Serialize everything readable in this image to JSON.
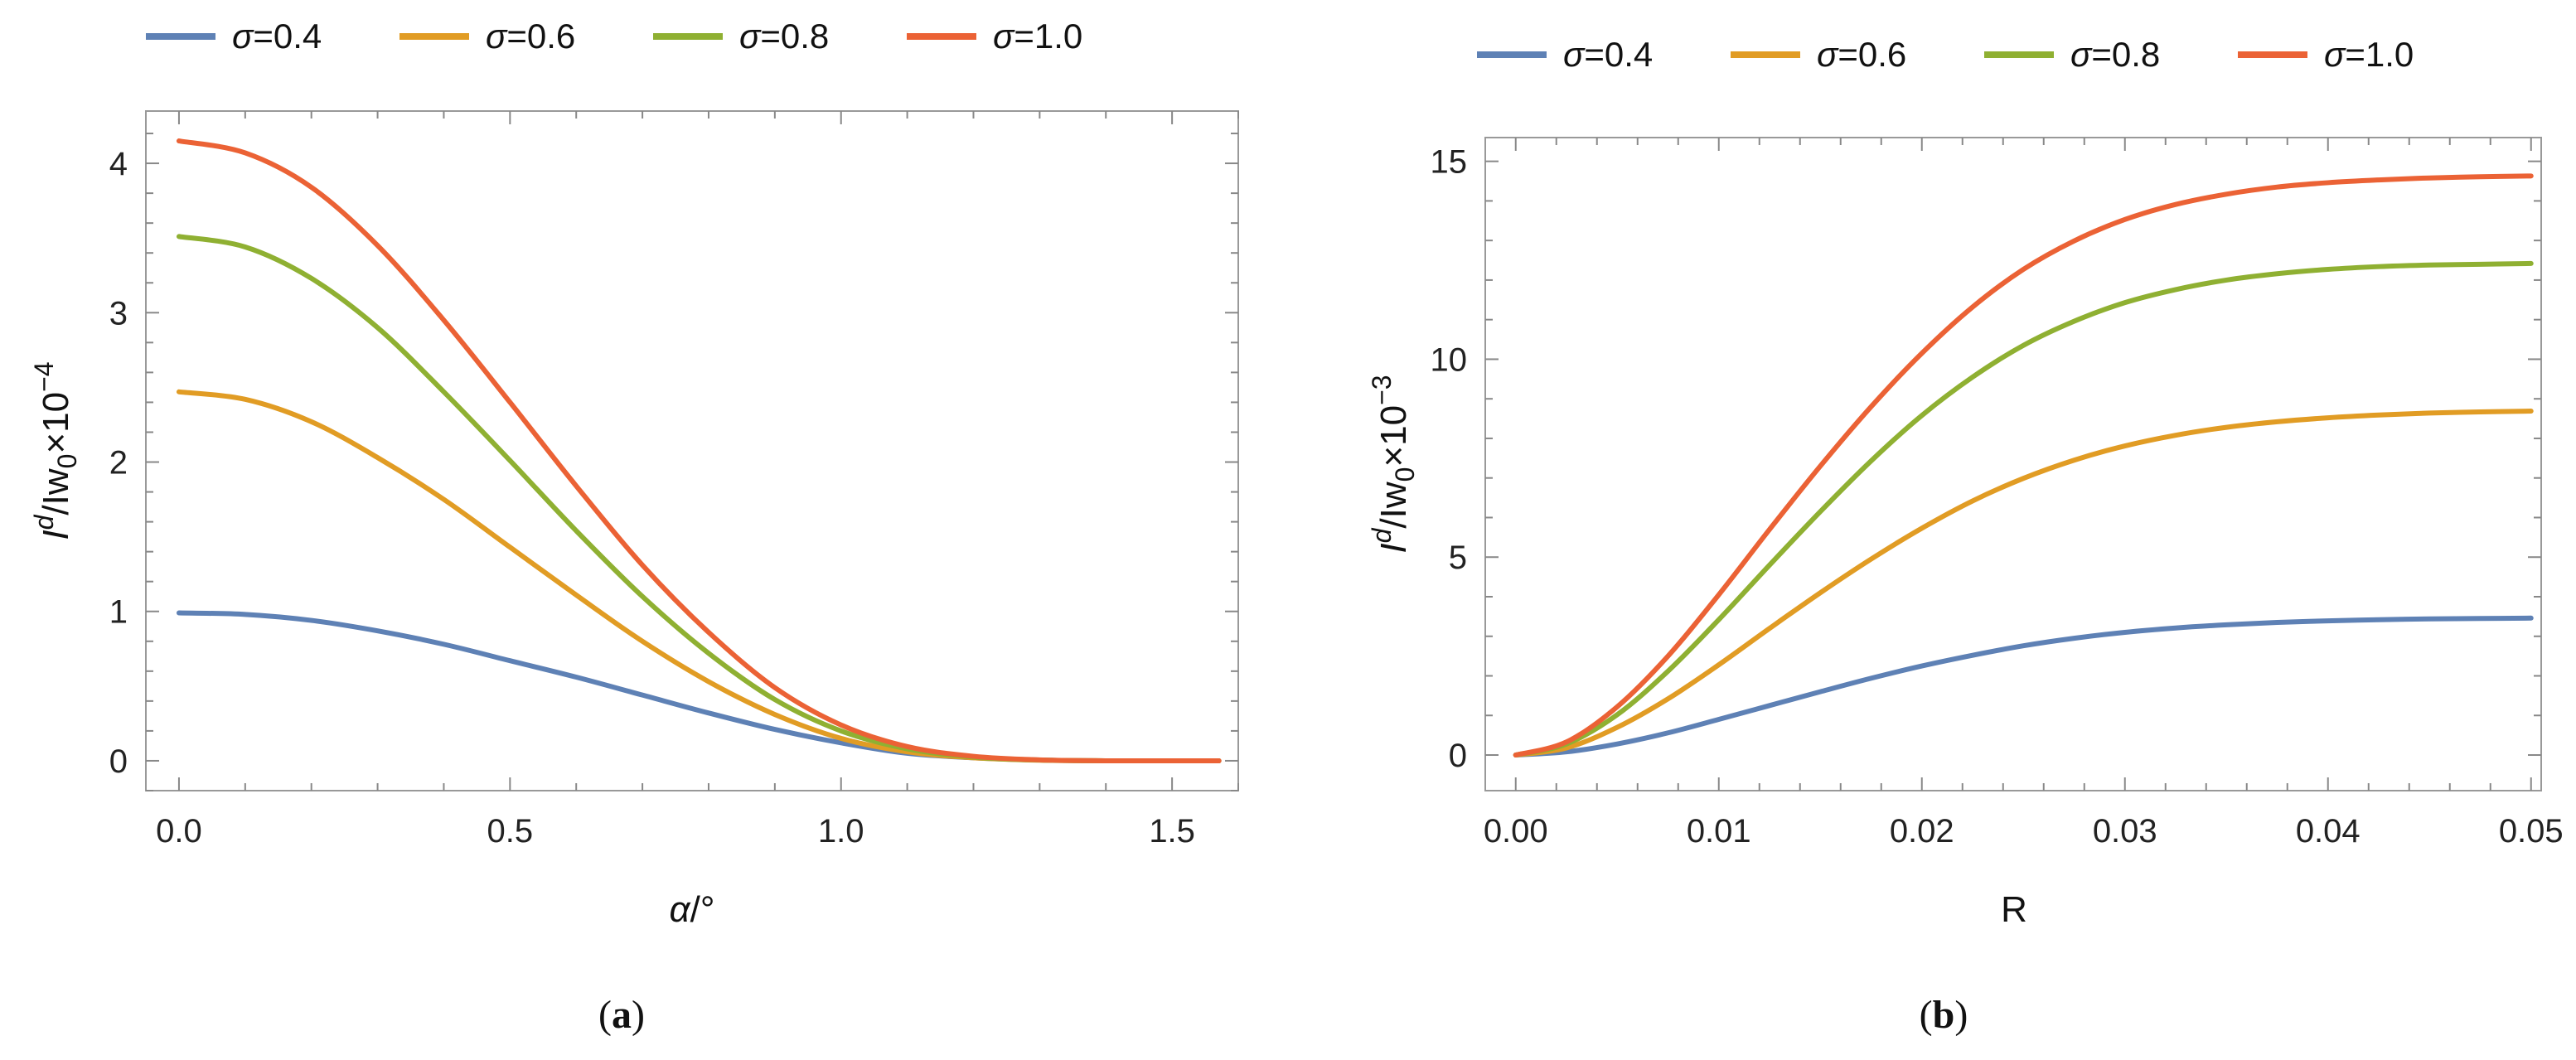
{
  "chart_data": [
    {
      "type": "line",
      "caption_letter": "a",
      "xlabel_symbol": "α",
      "xlabel_unit": "/°",
      "ylabel": {
        "base": "I",
        "sup": "d",
        "mid": "/Iw",
        "sub": "0",
        "mult": "×10",
        "exp": "−4"
      },
      "xlim": [
        -0.05,
        1.6
      ],
      "ylim": [
        -0.2,
        4.35
      ],
      "x_ticks": [
        0.0,
        0.5,
        1.0,
        1.5
      ],
      "x_tick_labels": [
        "0.0",
        "0.5",
        "1.0",
        "1.5"
      ],
      "y_ticks": [
        0,
        1,
        2,
        3,
        4
      ],
      "y_tick_labels": [
        "0",
        "1",
        "2",
        "3",
        "4"
      ],
      "x": [
        0.0,
        0.1,
        0.2,
        0.3,
        0.4,
        0.5,
        0.6,
        0.7,
        0.8,
        0.9,
        1.0,
        1.1,
        1.2,
        1.3,
        1.4,
        1.5,
        1.5708
      ],
      "series": [
        {
          "name": "σ=0.4",
          "legend_sym": "σ",
          "legend_val": "=0.4",
          "color": "#5E81B5",
          "values": [
            0.99,
            0.98,
            0.94,
            0.87,
            0.78,
            0.67,
            0.56,
            0.44,
            0.32,
            0.21,
            0.12,
            0.05,
            0.02,
            0.005,
            0.0,
            0.0,
            0.0
          ]
        },
        {
          "name": "σ=0.6",
          "legend_sym": "σ",
          "legend_val": "=0.6",
          "color": "#E19C24",
          "values": [
            2.47,
            2.42,
            2.27,
            2.03,
            1.75,
            1.43,
            1.11,
            0.8,
            0.53,
            0.31,
            0.15,
            0.06,
            0.02,
            0.004,
            0.0,
            0.0,
            0.0
          ]
        },
        {
          "name": "σ=0.8",
          "legend_sym": "σ",
          "legend_val": "=0.8",
          "color": "#8FB032",
          "values": [
            3.51,
            3.44,
            3.23,
            2.9,
            2.47,
            2.01,
            1.54,
            1.1,
            0.72,
            0.41,
            0.2,
            0.08,
            0.025,
            0.005,
            0.0,
            0.0,
            0.0
          ]
        },
        {
          "name": "σ=1.0",
          "legend_sym": "σ",
          "legend_val": "=1.0",
          "color": "#EB6235",
          "values": [
            4.15,
            4.07,
            3.84,
            3.45,
            2.95,
            2.4,
            1.84,
            1.31,
            0.86,
            0.49,
            0.24,
            0.095,
            0.03,
            0.006,
            0.0,
            0.0,
            0.0
          ]
        }
      ]
    },
    {
      "type": "line",
      "caption_letter": "b",
      "xlabel": "R",
      "ylabel": {
        "base": "I",
        "sup": "d",
        "mid": "/Iw",
        "sub": "0",
        "mult": "×10",
        "exp": "−3"
      },
      "xlim": [
        -0.0015,
        0.0505
      ],
      "ylim": [
        -0.9,
        15.6
      ],
      "x_ticks": [
        0.0,
        0.01,
        0.02,
        0.03,
        0.04,
        0.05
      ],
      "x_tick_labels": [
        "0.00",
        "0.01",
        "0.02",
        "0.03",
        "0.04",
        "0.05"
      ],
      "y_ticks": [
        0,
        5,
        10,
        15
      ],
      "y_tick_labels": [
        "0",
        "5",
        "10",
        "15"
      ],
      "x": [
        0.0,
        0.0025,
        0.005,
        0.0075,
        0.01,
        0.0125,
        0.015,
        0.0175,
        0.02,
        0.0225,
        0.025,
        0.0275,
        0.03,
        0.0325,
        0.035,
        0.0375,
        0.04,
        0.0425,
        0.045,
        0.0475,
        0.05
      ],
      "series": [
        {
          "name": "σ=0.4",
          "legend_sym": "σ",
          "legend_val": "=0.4",
          "color": "#5E81B5",
          "values": [
            0.0,
            0.08,
            0.28,
            0.56,
            0.9,
            1.25,
            1.6,
            1.94,
            2.25,
            2.52,
            2.76,
            2.95,
            3.1,
            3.21,
            3.29,
            3.35,
            3.39,
            3.42,
            3.44,
            3.45,
            3.46
          ]
        },
        {
          "name": "σ=0.6",
          "legend_sym": "σ",
          "legend_val": "=0.6",
          "color": "#E19C24",
          "values": [
            0.0,
            0.18,
            0.7,
            1.42,
            2.28,
            3.2,
            4.1,
            4.95,
            5.73,
            6.42,
            6.99,
            7.45,
            7.81,
            8.08,
            8.28,
            8.42,
            8.52,
            8.59,
            8.64,
            8.67,
            8.69
          ]
        },
        {
          "name": "σ=0.8",
          "legend_sym": "σ",
          "legend_val": "=0.8",
          "color": "#8FB032",
          "values": [
            0.0,
            0.28,
            1.02,
            2.12,
            3.42,
            4.8,
            6.15,
            7.43,
            8.58,
            9.55,
            10.35,
            10.96,
            11.43,
            11.76,
            12.0,
            12.16,
            12.27,
            12.34,
            12.38,
            12.4,
            12.42
          ]
        },
        {
          "name": "σ=1.0",
          "legend_sym": "σ",
          "legend_val": "=1.0",
          "color": "#EB6235",
          "values": [
            0.0,
            0.33,
            1.22,
            2.5,
            4.05,
            5.7,
            7.3,
            8.8,
            10.15,
            11.32,
            12.27,
            12.99,
            13.53,
            13.91,
            14.17,
            14.35,
            14.46,
            14.53,
            14.58,
            14.61,
            14.63
          ]
        }
      ]
    }
  ]
}
